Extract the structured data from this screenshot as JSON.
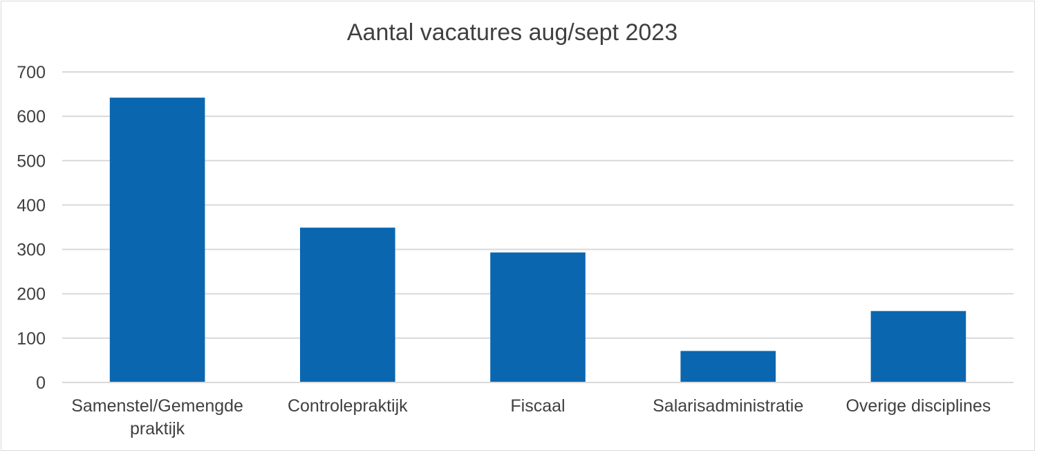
{
  "chart_data": {
    "type": "bar",
    "title": "Aantal vacatures aug/sept 2023",
    "categories": [
      [
        "Samenstel/Gemengde",
        "praktijk"
      ],
      [
        "Controlepraktijk"
      ],
      [
        "Fiscaal"
      ],
      [
        "Salarisadministratie"
      ],
      [
        "Overige disciplines"
      ]
    ],
    "values": [
      642,
      349,
      293,
      71,
      161
    ],
    "ylim": [
      0,
      700
    ],
    "yticks": [
      "0",
      "100",
      "200",
      "300",
      "400",
      "500",
      "600",
      "700"
    ],
    "grid": true,
    "xlabel": "",
    "ylabel": "",
    "colors": {
      "bar": "#0b66b0",
      "grid": "#d9d9d9",
      "axis": "#d9d9d9",
      "text": "#404040"
    }
  }
}
